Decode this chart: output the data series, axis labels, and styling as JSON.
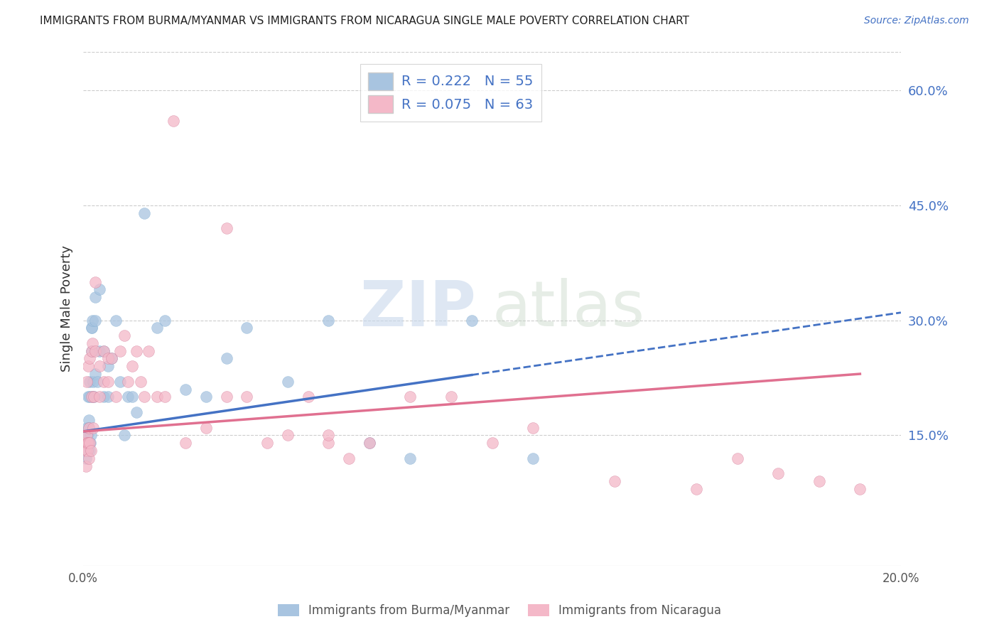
{
  "title": "IMMIGRANTS FROM BURMA/MYANMAR VS IMMIGRANTS FROM NICARAGUA SINGLE MALE POVERTY CORRELATION CHART",
  "source": "Source: ZipAtlas.com",
  "ylabel": "Single Male Poverty",
  "legend_labels": [
    "Immigrants from Burma/Myanmar",
    "Immigrants from Nicaragua"
  ],
  "R_burma": 0.222,
  "N_burma": 55,
  "R_nicaragua": 0.075,
  "N_nicaragua": 63,
  "color_burma": "#a8c4e0",
  "color_nicaragua": "#f4b8c8",
  "line_color_burma": "#4472c4",
  "line_color_nicaragua": "#e07090",
  "right_ytick_labels": [
    "15.0%",
    "30.0%",
    "45.0%",
    "60.0%"
  ],
  "right_ytick_values": [
    0.15,
    0.3,
    0.45,
    0.6
  ],
  "right_ytick_color": "#4472c4",
  "xlim": [
    0.0,
    0.2
  ],
  "ylim": [
    -0.02,
    0.65
  ],
  "background_color": "#ffffff",
  "watermark_zip": "ZIP",
  "watermark_atlas": "atlas",
  "burma_x": [
    0.0005,
    0.0006,
    0.0007,
    0.0008,
    0.0009,
    0.001,
    0.001,
    0.001,
    0.0012,
    0.0012,
    0.0013,
    0.0013,
    0.0014,
    0.0015,
    0.0015,
    0.0016,
    0.0017,
    0.0018,
    0.002,
    0.002,
    0.002,
    0.0022,
    0.0023,
    0.0024,
    0.0025,
    0.003,
    0.003,
    0.003,
    0.0035,
    0.004,
    0.004,
    0.005,
    0.005,
    0.006,
    0.006,
    0.007,
    0.008,
    0.009,
    0.01,
    0.011,
    0.012,
    0.013,
    0.015,
    0.018,
    0.02,
    0.025,
    0.03,
    0.035,
    0.04,
    0.05,
    0.06,
    0.07,
    0.08,
    0.095,
    0.11
  ],
  "burma_y": [
    0.14,
    0.13,
    0.12,
    0.15,
    0.16,
    0.13,
    0.14,
    0.15,
    0.2,
    0.14,
    0.17,
    0.16,
    0.14,
    0.13,
    0.22,
    0.2,
    0.14,
    0.15,
    0.26,
    0.29,
    0.29,
    0.3,
    0.2,
    0.22,
    0.2,
    0.3,
    0.33,
    0.23,
    0.22,
    0.34,
    0.26,
    0.2,
    0.26,
    0.2,
    0.24,
    0.25,
    0.3,
    0.22,
    0.15,
    0.2,
    0.2,
    0.18,
    0.44,
    0.29,
    0.3,
    0.21,
    0.2,
    0.25,
    0.29,
    0.22,
    0.3,
    0.14,
    0.12,
    0.3,
    0.12
  ],
  "nicaragua_x": [
    0.0003,
    0.0005,
    0.0006,
    0.0007,
    0.0008,
    0.0009,
    0.001,
    0.001,
    0.0012,
    0.0012,
    0.0013,
    0.0014,
    0.0015,
    0.0016,
    0.0018,
    0.002,
    0.002,
    0.0022,
    0.0024,
    0.0025,
    0.003,
    0.003,
    0.004,
    0.004,
    0.005,
    0.005,
    0.006,
    0.006,
    0.007,
    0.008,
    0.009,
    0.01,
    0.011,
    0.012,
    0.013,
    0.014,
    0.015,
    0.016,
    0.018,
    0.02,
    0.025,
    0.03,
    0.035,
    0.04,
    0.045,
    0.05,
    0.055,
    0.06,
    0.065,
    0.07,
    0.08,
    0.09,
    0.1,
    0.11,
    0.13,
    0.15,
    0.16,
    0.17,
    0.18,
    0.19,
    0.022,
    0.035,
    0.06
  ],
  "nicaragua_y": [
    0.14,
    0.13,
    0.11,
    0.14,
    0.15,
    0.22,
    0.14,
    0.13,
    0.24,
    0.14,
    0.12,
    0.16,
    0.25,
    0.14,
    0.13,
    0.26,
    0.2,
    0.27,
    0.16,
    0.2,
    0.35,
    0.26,
    0.2,
    0.24,
    0.26,
    0.22,
    0.25,
    0.22,
    0.25,
    0.2,
    0.26,
    0.28,
    0.22,
    0.24,
    0.26,
    0.22,
    0.2,
    0.26,
    0.2,
    0.2,
    0.14,
    0.16,
    0.2,
    0.2,
    0.14,
    0.15,
    0.2,
    0.14,
    0.12,
    0.14,
    0.2,
    0.2,
    0.14,
    0.16,
    0.09,
    0.08,
    0.12,
    0.1,
    0.09,
    0.08,
    0.56,
    0.42,
    0.15
  ],
  "burma_line_start_x": 0.0,
  "burma_line_end_solid_x": 0.095,
  "burma_line_end_x": 0.2,
  "nicaragua_line_start_x": 0.0,
  "nicaragua_line_end_x": 0.19,
  "burma_line_y_at_0": 0.155,
  "burma_line_y_at_020": 0.31,
  "nicaragua_line_y_at_0": 0.155,
  "nicaragua_line_y_at_019": 0.23
}
